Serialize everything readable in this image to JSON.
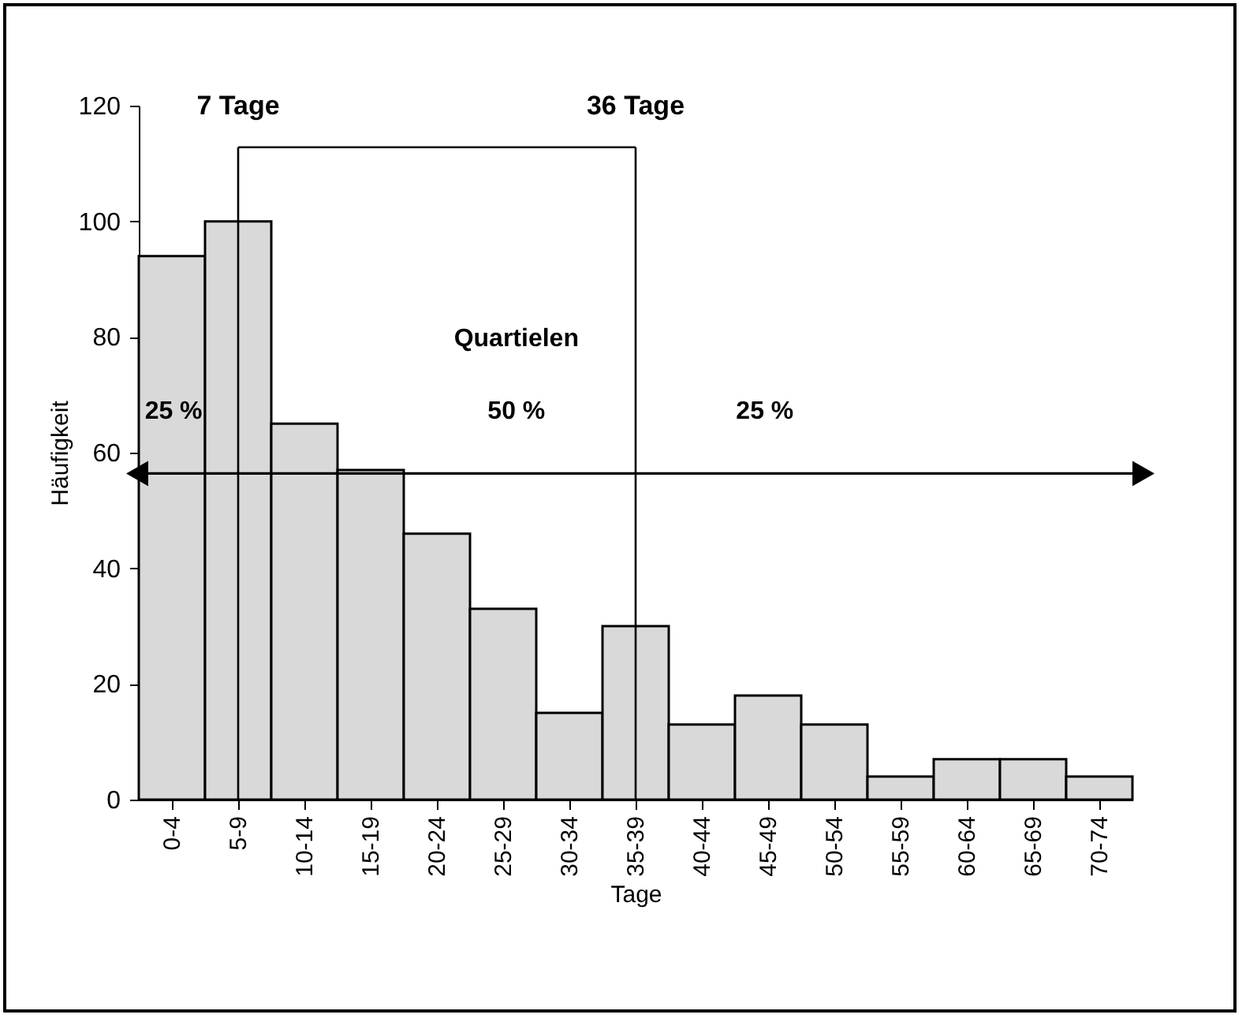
{
  "chart_data": {
    "type": "bar",
    "xlabel": "Tage",
    "ylabel": "Häufigkeit",
    "categories": [
      "0-4",
      "5-9",
      "10-14",
      "15-19",
      "20-24",
      "25-29",
      "30-34",
      "35-39",
      "40-44",
      "45-49",
      "50-54",
      "55-59",
      "60-64",
      "65-69",
      "70-74"
    ],
    "values": [
      94,
      100,
      65,
      57,
      46,
      33,
      15,
      30,
      13,
      18,
      13,
      4,
      7,
      7,
      4
    ],
    "color": "#d9d9d9",
    "ylim": [
      0,
      120
    ],
    "yticks": [
      0,
      20,
      40,
      60,
      80,
      100,
      120
    ],
    "ref_lines": [
      {
        "axis": "x",
        "value": "5-9",
        "label": "7 Tage"
      },
      {
        "axis": "x",
        "value": "35-39",
        "label": "36 Tage"
      }
    ],
    "annotations": [
      "Quartielen",
      "25 %",
      "50 %",
      "25 %"
    ],
    "grid": false
  }
}
